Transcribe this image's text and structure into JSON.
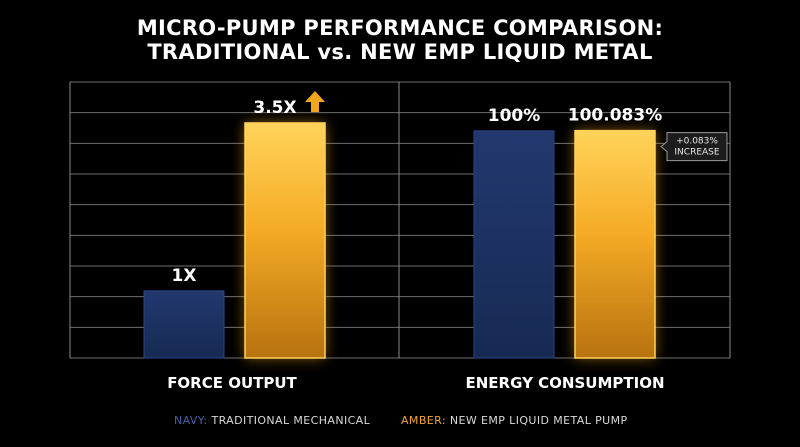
{
  "title": {
    "line1": "MICRO-PUMP PERFORMANCE COMPARISON:",
    "line2": "TRADITIONAL vs. NEW EMP LIQUID METAL"
  },
  "colors": {
    "navy": "#1d3160",
    "navy_edge": "#2c4583",
    "amber": "#f2a51f",
    "amber_light": "#ffd35a",
    "amber_dark": "#b87210",
    "legend_navy": "#4a5fa8",
    "legend_amber": "#f0a52a",
    "grid": "#8a8a8a"
  },
  "chart_data": {
    "type": "bar",
    "groups": [
      {
        "name": "FORCE OUTPUT",
        "value_scale_max": 4.11,
        "bars": [
          {
            "series": "NAVY",
            "value": 1,
            "label": "1X"
          },
          {
            "series": "AMBER",
            "value": 3.5,
            "label": "3.5X",
            "arrow": "up-arrow-icon"
          }
        ]
      },
      {
        "name": "ENERGY CONSUMPTION",
        "value_scale_max": 121.5,
        "bars": [
          {
            "series": "NAVY",
            "value": 100,
            "label": "100%"
          },
          {
            "series": "AMBER",
            "value": 100.083,
            "label": "100.083%",
            "annotation": [
              "+0.083%",
              "INCREASE"
            ]
          }
        ]
      }
    ],
    "legend": [
      {
        "key": "NAVY:",
        "text": "TRADITIONAL MECHANICAL"
      },
      {
        "key": "AMBER:",
        "text": "NEW EMP LIQUID METAL PUMP"
      }
    ],
    "grid": true,
    "gridlines": 9
  }
}
